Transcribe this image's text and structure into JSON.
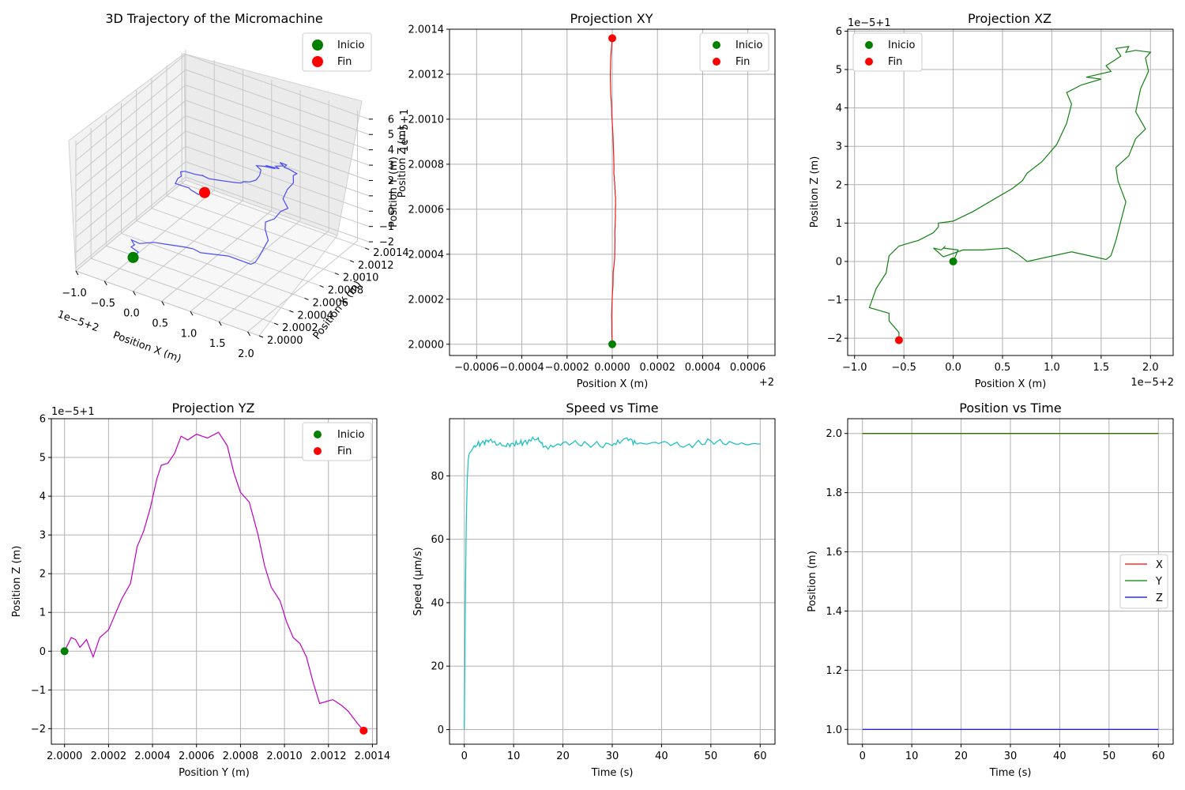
{
  "colors": {
    "trajectory3d": "#4a4aff",
    "xy": "#e8191c",
    "xz": "#128012",
    "yz": "#bf00bf",
    "speed": "#11bfbf",
    "pos_x": "#ff0000",
    "pos_y": "#008000",
    "pos_z": "#0000ff",
    "inicio": "#008000",
    "fin": "#ff0000"
  },
  "chart_data": [
    {
      "id": "traj3d",
      "type": "line3d",
      "title": "3D Trajectory of the Micromachine",
      "xlabel": "Position X (m)",
      "ylabel": "Position Y (m)",
      "zlabel": "Position Z (m)",
      "x_offset": "1e−5+2",
      "z_offset": "1e−5+1",
      "xlim": [
        -1.0,
        2.2
      ],
      "ylim": [
        2.0,
        2.00145
      ],
      "zlim": [
        -2.2,
        6.3
      ],
      "xticks": [
        "−1.0",
        "−0.5",
        "0.0",
        "0.5",
        "1.0",
        "1.5",
        "2.0"
      ],
      "yticks": [
        "2.0000",
        "2.0002",
        "2.0004",
        "2.0006",
        "2.0008",
        "2.0010",
        "2.0012",
        "2.0014"
      ],
      "zticks": [
        "−2",
        "−1",
        "0",
        "1",
        "2",
        "3",
        "4",
        "5",
        "6"
      ],
      "legend": [
        "Inicio",
        "Fin"
      ],
      "legend_loc": "upper right"
    },
    {
      "id": "xy",
      "type": "line",
      "title": "Projection XY",
      "xlabel": "Position X (m)",
      "ylabel": "Position Y (m)",
      "x_offset": "+2",
      "xlim": [
        -0.00072,
        0.00072
      ],
      "ylim": [
        1.99995,
        2.0014
      ],
      "xticks": [
        "−0.0006",
        "−0.0004",
        "−0.0002",
        "0.0000",
        "0.0002",
        "0.0004",
        "0.0006"
      ],
      "yticks": [
        "2.0000",
        "2.0002",
        "2.0004",
        "2.0006",
        "2.0008",
        "2.0010",
        "2.0012",
        "2.0014"
      ],
      "legend": [
        "Inicio",
        "Fin"
      ],
      "legend_loc": "upper right",
      "grid": true
    },
    {
      "id": "xz",
      "type": "line",
      "title": "Projection XZ",
      "xlabel": "Position X (m)",
      "ylabel": "Position Z (m)",
      "x_offset": "1e−5+2",
      "y_offset": "1e−5+1",
      "xlim": [
        -1.07,
        2.23
      ],
      "ylim": [
        -2.45,
        6.05
      ],
      "xticks": [
        "−1.0",
        "−0.5",
        "0.0",
        "0.5",
        "1.0",
        "1.5",
        "2.0"
      ],
      "yticks": [
        "−2",
        "−1",
        "0",
        "1",
        "2",
        "3",
        "4",
        "5",
        "6"
      ],
      "legend": [
        "Inicio",
        "Fin"
      ],
      "legend_loc": "upper left",
      "grid": true
    },
    {
      "id": "yz",
      "type": "line",
      "title": "Projection YZ",
      "xlabel": "Position Y (m)",
      "ylabel": "Position Z (m)",
      "y_offset": "1e−5+1",
      "xlim": [
        1.99994,
        2.00142
      ],
      "ylim": [
        -2.4,
        6.0
      ],
      "xticks": [
        "2.0000",
        "2.0002",
        "2.0004",
        "2.0006",
        "2.0008",
        "2.0010",
        "2.0012",
        "2.0014"
      ],
      "yticks": [
        "−2",
        "−1",
        "0",
        "1",
        "2",
        "3",
        "4",
        "5",
        "6"
      ],
      "legend": [
        "Inicio",
        "Fin"
      ],
      "legend_loc": "upper right",
      "grid": true
    },
    {
      "id": "speed",
      "type": "line",
      "title": "Speed vs Time",
      "xlabel": "Time (s)",
      "ylabel": "Speed (µm/s)",
      "xlim": [
        -3,
        63
      ],
      "ylim": [
        -4.6,
        98
      ],
      "xticks": [
        "0",
        "10",
        "20",
        "30",
        "40",
        "50",
        "60"
      ],
      "yticks": [
        "0",
        "20",
        "40",
        "60",
        "80"
      ],
      "grid": true
    },
    {
      "id": "pos",
      "type": "line",
      "title": "Position vs Time",
      "xlabel": "Time (s)",
      "ylabel": "Position (m)",
      "xlim": [
        -3,
        63
      ],
      "ylim": [
        0.95,
        2.05
      ],
      "xticks": [
        "0",
        "10",
        "20",
        "30",
        "40",
        "50",
        "60"
      ],
      "yticks": [
        "1.0",
        "1.2",
        "1.4",
        "1.6",
        "1.8",
        "2.0"
      ],
      "legend": [
        "X",
        "Y",
        "Z"
      ],
      "legend_loc": "center right",
      "grid": true,
      "series": [
        {
          "name": "X",
          "x": [
            0,
            60
          ],
          "y": [
            2.0,
            2.0
          ]
        },
        {
          "name": "Y",
          "x": [
            0,
            60
          ],
          "y": [
            2.0,
            2.0
          ]
        },
        {
          "name": "Z",
          "x": [
            0,
            60
          ],
          "y": [
            1.0,
            1.0
          ]
        }
      ]
    }
  ],
  "path_data": {
    "xz_xy": [
      [
        0.0,
        0.0,
        2.0
      ],
      [
        0.05,
        0.3,
        2.00003
      ],
      [
        -0.1,
        0.35,
        2.00005
      ],
      [
        -0.08,
        0.4,
        2.00008
      ],
      [
        -0.12,
        0.3,
        2.0001
      ],
      [
        -0.2,
        0.35,
        2.00013
      ],
      [
        -0.1,
        0.12,
        2.00016
      ],
      [
        0.1,
        0.3,
        2.0002
      ],
      [
        0.3,
        0.3,
        2.00023
      ],
      [
        0.55,
        0.35,
        2.00026
      ],
      [
        0.65,
        0.2,
        2.0003
      ],
      [
        0.75,
        0.0,
        2.00032
      ],
      [
        1.2,
        0.25,
        2.00035
      ],
      [
        1.55,
        0.05,
        2.00038
      ],
      [
        1.6,
        0.15,
        2.0004
      ],
      [
        1.65,
        0.55,
        2.00042
      ],
      [
        1.7,
        1.05,
        2.00044
      ],
      [
        1.75,
        1.55,
        2.00046
      ],
      [
        1.67,
        2.1,
        2.00048
      ],
      [
        1.65,
        2.45,
        2.0005
      ],
      [
        1.78,
        2.75,
        2.00052
      ],
      [
        1.85,
        3.2,
        2.00055
      ],
      [
        1.95,
        3.45,
        2.00057
      ],
      [
        1.85,
        3.9,
        2.00058
      ],
      [
        1.9,
        4.5,
        2.0006
      ],
      [
        1.98,
        4.95,
        2.00062
      ],
      [
        1.95,
        5.3,
        2.00064
      ],
      [
        2.0,
        5.45,
        2.00065
      ],
      [
        1.85,
        5.5,
        2.00066
      ],
      [
        1.75,
        5.45,
        2.00067
      ],
      [
        1.78,
        5.6,
        2.00068
      ],
      [
        1.65,
        5.55,
        2.00069
      ],
      [
        1.7,
        5.35,
        2.0007
      ],
      [
        1.55,
        5.1,
        2.00071
      ],
      [
        1.6,
        4.95,
        2.00072
      ],
      [
        1.35,
        4.8,
        2.00073
      ],
      [
        1.5,
        4.75,
        2.00074
      ],
      [
        1.3,
        4.6,
        2.00075
      ],
      [
        1.15,
        4.4,
        2.00076
      ],
      [
        1.2,
        4.1,
        2.00078
      ],
      [
        1.15,
        3.6,
        2.0008
      ],
      [
        1.05,
        3.05,
        2.00083
      ],
      [
        0.9,
        2.6,
        2.00086
      ],
      [
        0.75,
        2.3,
        2.00089
      ],
      [
        0.7,
        2.1,
        2.0009
      ],
      [
        0.6,
        1.9,
        2.00092
      ],
      [
        0.4,
        1.6,
        2.00095
      ],
      [
        0.2,
        1.3,
        2.00098
      ],
      [
        0.0,
        1.05,
        2.001
      ],
      [
        -0.15,
        1.0,
        2.00102
      ],
      [
        -0.15,
        0.9,
        2.00104
      ],
      [
        -0.2,
        0.75,
        2.00106
      ],
      [
        -0.35,
        0.55,
        2.00108
      ],
      [
        -0.55,
        0.4,
        2.0011
      ],
      [
        -0.65,
        0.15,
        2.00112
      ],
      [
        -0.68,
        -0.3,
        2.00115
      ],
      [
        -0.78,
        -0.7,
        2.00118
      ],
      [
        -0.85,
        -1.2,
        2.0012
      ],
      [
        -0.65,
        -1.35,
        2.00123
      ],
      [
        -0.65,
        -1.55,
        2.00125
      ],
      [
        -0.55,
        -1.85,
        2.00128
      ],
      [
        -0.55,
        -2.05,
        2.00136
      ]
    ],
    "yz": [
      [
        2.0,
        0.0
      ],
      [
        2.00003,
        0.35
      ],
      [
        2.00005,
        0.3
      ],
      [
        2.00007,
        0.1
      ],
      [
        2.0001,
        0.3
      ],
      [
        2.00013,
        -0.15
      ],
      [
        2.00016,
        0.35
      ],
      [
        2.0002,
        0.55
      ],
      [
        2.00023,
        0.95
      ],
      [
        2.00026,
        1.35
      ],
      [
        2.0003,
        1.75
      ],
      [
        2.00033,
        2.7
      ],
      [
        2.00036,
        3.1
      ],
      [
        2.00039,
        3.7
      ],
      [
        2.00042,
        4.45
      ],
      [
        2.00044,
        4.8
      ],
      [
        2.00047,
        4.85
      ],
      [
        2.0005,
        5.1
      ],
      [
        2.00053,
        5.55
      ],
      [
        2.00056,
        5.45
      ],
      [
        2.0006,
        5.6
      ],
      [
        2.00065,
        5.5
      ],
      [
        2.0007,
        5.65
      ],
      [
        2.00074,
        5.3
      ],
      [
        2.00077,
        4.6
      ],
      [
        2.0008,
        4.1
      ],
      [
        2.00084,
        3.85
      ],
      [
        2.00088,
        3.0
      ],
      [
        2.00091,
        2.2
      ],
      [
        2.00094,
        1.65
      ],
      [
        2.00098,
        1.3
      ],
      [
        2.00101,
        0.75
      ],
      [
        2.00104,
        0.35
      ],
      [
        2.00107,
        0.2
      ],
      [
        2.0011,
        -0.15
      ],
      [
        2.00113,
        -0.8
      ],
      [
        2.00116,
        -1.35
      ],
      [
        2.00119,
        -1.3
      ],
      [
        2.00122,
        -1.25
      ],
      [
        2.00126,
        -1.4
      ],
      [
        2.00129,
        -1.55
      ],
      [
        2.00133,
        -1.85
      ],
      [
        2.00136,
        -2.05
      ]
    ],
    "speed": [
      [
        0,
        0
      ],
      [
        0.2,
        40
      ],
      [
        0.4,
        65
      ],
      [
        0.6,
        79
      ],
      [
        0.8,
        85
      ],
      [
        1.0,
        87
      ],
      [
        1.5,
        88
      ],
      [
        2,
        89.5
      ],
      [
        3,
        90
      ],
      [
        4,
        90.5
      ],
      [
        5,
        91
      ],
      [
        8,
        89.5
      ],
      [
        10,
        90
      ],
      [
        12,
        90.5
      ],
      [
        15,
        92
      ],
      [
        16,
        89
      ],
      [
        20,
        90.5
      ],
      [
        25,
        90
      ],
      [
        30,
        89.5
      ],
      [
        33,
        92
      ],
      [
        35,
        90
      ],
      [
        40,
        90.5
      ],
      [
        45,
        89.5
      ],
      [
        50,
        91
      ],
      [
        55,
        90
      ],
      [
        60,
        90
      ]
    ]
  }
}
